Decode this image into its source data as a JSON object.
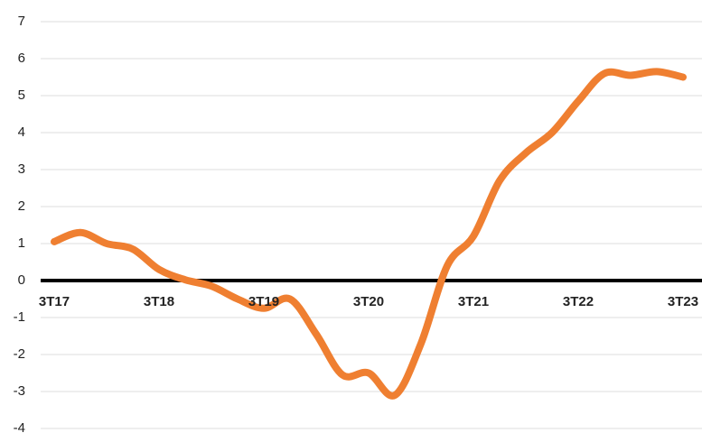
{
  "chart_data": {
    "type": "line",
    "categories": [
      "3T17",
      null,
      null,
      null,
      "3T18",
      null,
      null,
      null,
      "3T19",
      null,
      null,
      null,
      "3T20",
      null,
      null,
      null,
      "3T21",
      null,
      null,
      null,
      "3T22",
      null,
      null,
      null,
      "3T23"
    ],
    "series": [
      {
        "name": null,
        "color": "#ef7f31",
        "values": [
          1.05,
          1.3,
          1.0,
          0.85,
          0.3,
          0.02,
          -0.15,
          -0.5,
          -0.75,
          -0.5,
          -1.45,
          -2.55,
          -2.5,
          -3.1,
          -1.7,
          0.4,
          1.2,
          2.7,
          3.45,
          4.0,
          4.85,
          5.6,
          5.55,
          5.65,
          5.5
        ]
      }
    ],
    "ylim": [
      -4,
      7
    ],
    "yticks": [
      -4,
      -3,
      -2,
      -1,
      0,
      1,
      2,
      3,
      4,
      5,
      6,
      7
    ],
    "grid": true
  }
}
